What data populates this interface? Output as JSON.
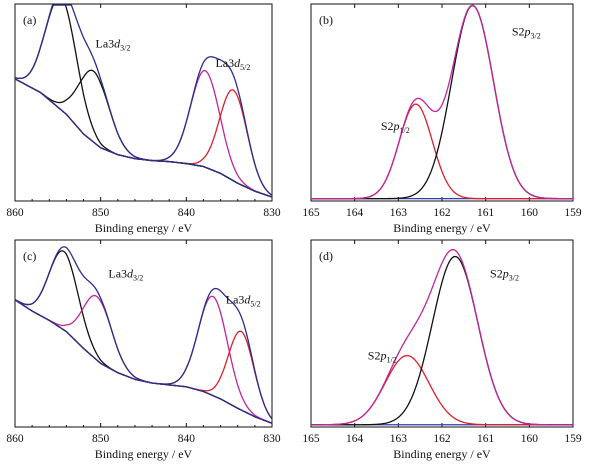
{
  "colors": {
    "envelope_ab_c": "#2a2f8a",
    "envelope_sulfur": "#c0269a",
    "component_black": "#111111",
    "component_red": "#d8202e",
    "component_magenta": "#c0269a",
    "background_green": "#2a8c2a",
    "baseline_blue": "#2b3fa8"
  },
  "chart_data": [
    {
      "panel": "(a)",
      "type": "line",
      "xlabel": "Binding energy / eV",
      "ylabel": "",
      "x_ticks": [
        860,
        850,
        840,
        830
      ],
      "x_tick_labels": [
        "860",
        "850",
        "840",
        "830"
      ],
      "xlim": [
        860,
        830
      ],
      "x_reversed": true,
      "ylim": [
        0,
        1
      ],
      "y_ticks_shown": false,
      "annotations": [
        {
          "base": "La3",
          "italic": "d",
          "sub": "3/2",
          "x": 850.6,
          "y": 0.78
        },
        {
          "base": "La3",
          "italic": "d",
          "sub": "5/2",
          "x": 836.6,
          "y": 0.68
        }
      ],
      "background": {
        "points": [
          [
            860,
            0.62
          ],
          [
            857,
            0.55
          ],
          [
            854,
            0.44
          ],
          [
            852,
            0.34
          ],
          [
            850,
            0.27
          ],
          [
            848,
            0.235
          ],
          [
            846,
            0.215
          ],
          [
            844,
            0.205
          ],
          [
            842,
            0.2
          ],
          [
            840,
            0.19
          ],
          [
            838,
            0.175
          ],
          [
            836,
            0.14
          ],
          [
            834,
            0.09
          ],
          [
            832,
            0.05
          ],
          [
            830,
            0.02
          ]
        ]
      },
      "peaks": [
        {
          "center": 854.6,
          "height": 0.57,
          "width": 1.8,
          "color_key": "component_black",
          "on_background": true
        },
        {
          "center": 850.8,
          "height": 0.36,
          "width": 1.8,
          "color_key": "component_black",
          "on_background": true
        },
        {
          "center": 837.8,
          "height": 0.49,
          "width": 1.7,
          "color_key": "component_magenta",
          "on_background": true
        },
        {
          "center": 834.5,
          "height": 0.46,
          "width": 1.6,
          "color_key": "component_red",
          "on_background": true
        }
      ],
      "envelopes": [
        {
          "peaks": [
            0,
            1
          ],
          "color_key": "envelope_ab_c"
        },
        {
          "peaks": [
            2,
            3
          ],
          "color_key": "envelope_ab_c"
        }
      ]
    },
    {
      "panel": "(b)",
      "type": "line",
      "xlabel": "Binding energy / eV",
      "ylabel": "",
      "x_ticks": [
        165,
        164,
        163,
        162,
        161,
        160,
        159
      ],
      "x_tick_labels": [
        "165",
        "164",
        "163",
        "162",
        "161",
        "160",
        "159"
      ],
      "xlim": [
        165,
        159
      ],
      "x_reversed": true,
      "ylim": [
        0,
        1
      ],
      "y_ticks_shown": false,
      "annotations": [
        {
          "base": "S2",
          "italic": "p",
          "sub": "3/2",
          "x": 160.4,
          "y": 0.84
        },
        {
          "base": "S2",
          "italic": "p",
          "sub": "1/2",
          "x": 163.4,
          "y": 0.36
        }
      ],
      "background": {
        "points": [
          [
            165,
            0.012
          ],
          [
            159,
            0.012
          ]
        ]
      },
      "peaks": [
        {
          "center": 162.6,
          "height": 0.48,
          "width": 0.38,
          "color_key": "component_red",
          "on_background": false
        },
        {
          "center": 161.3,
          "height": 0.98,
          "width": 0.48,
          "color_key": "component_black",
          "on_background": false
        }
      ],
      "envelopes": [
        {
          "peaks": [
            0,
            1
          ],
          "color_key": "envelope_sulfur"
        }
      ]
    },
    {
      "panel": "(c)",
      "type": "line",
      "xlabel": "Binding energy / eV",
      "ylabel": "",
      "x_ticks": [
        860,
        850,
        840,
        830
      ],
      "x_tick_labels": [
        "860",
        "850",
        "840",
        "830"
      ],
      "xlim": [
        860,
        830
      ],
      "x_reversed": true,
      "ylim": [
        0,
        1
      ],
      "y_ticks_shown": false,
      "annotations": [
        {
          "base": "La3",
          "italic": "d",
          "sub": "3/2",
          "x": 849.1,
          "y": 0.8
        },
        {
          "base": "La3",
          "italic": "d",
          "sub": "5/2",
          "x": 835.4,
          "y": 0.66
        }
      ],
      "background": {
        "points": [
          [
            860,
            0.68
          ],
          [
            858,
            0.62
          ],
          [
            856,
            0.57
          ],
          [
            854,
            0.51
          ],
          [
            852,
            0.42
          ],
          [
            850,
            0.34
          ],
          [
            848,
            0.29
          ],
          [
            846,
            0.255
          ],
          [
            844,
            0.235
          ],
          [
            842,
            0.225
          ],
          [
            840,
            0.215
          ],
          [
            838,
            0.19
          ],
          [
            836,
            0.15
          ],
          [
            834,
            0.1
          ],
          [
            832,
            0.055
          ],
          [
            830,
            0.02
          ]
        ]
      },
      "peaks": [
        {
          "center": 854.3,
          "height": 0.42,
          "width": 1.7,
          "color_key": "component_black",
          "on_background": true
        },
        {
          "center": 850.4,
          "height": 0.34,
          "width": 1.7,
          "color_key": "component_magenta",
          "on_background": true
        },
        {
          "center": 836.9,
          "height": 0.53,
          "width": 1.7,
          "color_key": "component_magenta",
          "on_background": true
        },
        {
          "center": 833.6,
          "height": 0.42,
          "width": 1.5,
          "color_key": "component_red",
          "on_background": true
        }
      ],
      "envelopes": [
        {
          "peaks": [
            0,
            1
          ],
          "color_key": "envelope_ab_c"
        },
        {
          "peaks": [
            2,
            3
          ],
          "color_key": "envelope_ab_c"
        }
      ]
    },
    {
      "panel": "(d)",
      "type": "line",
      "xlabel": "Binding energy / eV",
      "ylabel": "",
      "x_ticks": [
        165,
        164,
        163,
        162,
        161,
        160,
        159
      ],
      "x_tick_labels": [
        "165",
        "164",
        "163",
        "162",
        "161",
        "160",
        "159"
      ],
      "xlim": [
        165,
        159
      ],
      "x_reversed": true,
      "ylim": [
        0,
        1
      ],
      "y_ticks_shown": false,
      "annotations": [
        {
          "base": "S2",
          "italic": "p",
          "sub": "3/2",
          "x": 160.9,
          "y": 0.8
        },
        {
          "base": "S2",
          "italic": "p",
          "sub": "1/2",
          "x": 163.7,
          "y": 0.36
        }
      ],
      "background": {
        "points": [
          [
            165,
            0.012
          ],
          [
            159,
            0.012
          ]
        ]
      },
      "peaks": [
        {
          "center": 162.8,
          "height": 0.37,
          "width": 0.5,
          "color_key": "component_red",
          "on_background": false
        },
        {
          "center": 161.7,
          "height": 0.9,
          "width": 0.52,
          "color_key": "component_black",
          "on_background": false
        }
      ],
      "envelopes": [
        {
          "peaks": [
            0,
            1
          ],
          "color_key": "envelope_sulfur"
        }
      ]
    }
  ]
}
